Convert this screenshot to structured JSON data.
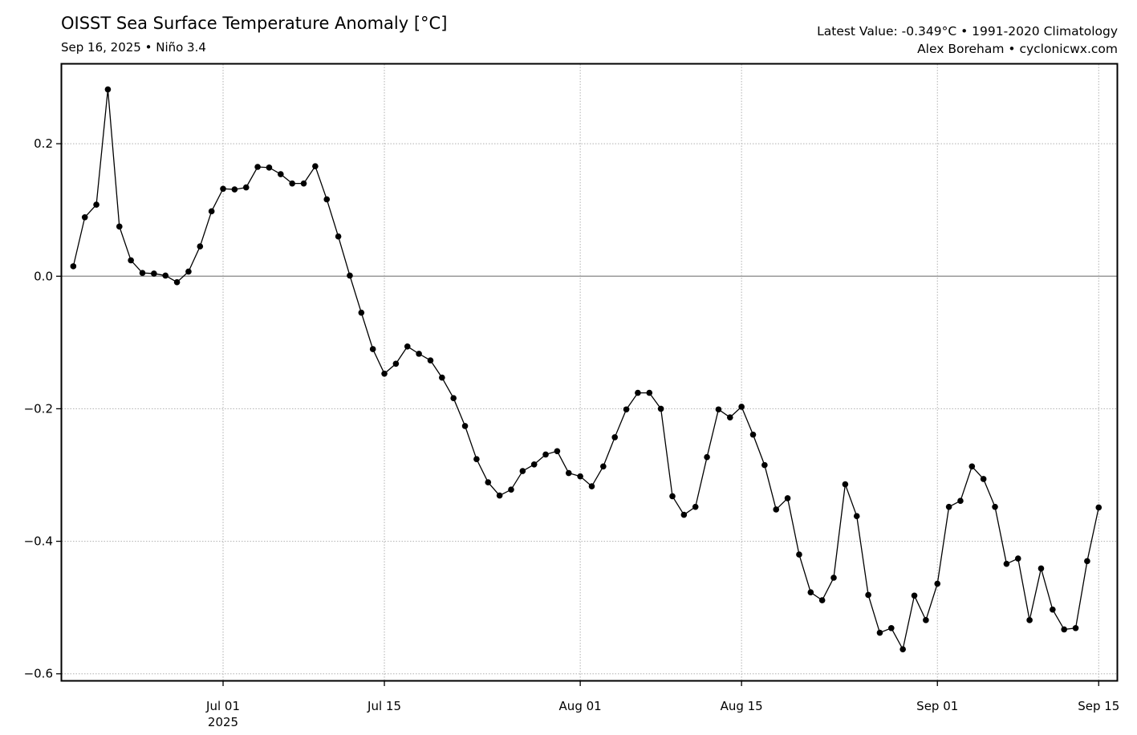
{
  "header": {
    "title": "OISST Sea Surface Temperature Anomaly [°C]",
    "subtitle": "Sep 16, 2025 • Niño 3.4",
    "latest": "Latest Value: -0.349°C • 1991-2020 Climatology",
    "credit": "Alex Boreham • cyclonicwx.com"
  },
  "chart_data": {
    "type": "line",
    "title": "OISST Sea Surface Temperature Anomaly [°C]",
    "subtitle": "Sep 16, 2025 • Niño 3.4",
    "xlabel": "",
    "ylabel": "",
    "ylim": [
      -0.61,
      0.32
    ],
    "xlim": [
      "2025-06-17T00:00",
      "2025-09-16T14:00"
    ],
    "grid": true,
    "zero_line": true,
    "yticks": [
      {
        "value": 0.2,
        "label": "0.2"
      },
      {
        "value": 0.0,
        "label": "0.0"
      },
      {
        "value": -0.2,
        "label": "−0.2"
      },
      {
        "value": -0.4,
        "label": "−0.4"
      },
      {
        "value": -0.6,
        "label": "−0.6"
      }
    ],
    "xticks": [
      {
        "date": "2025-07-01",
        "label": "Jul 01",
        "sublabel": "2025"
      },
      {
        "date": "2025-07-15",
        "label": "Jul 15",
        "sublabel": ""
      },
      {
        "date": "2025-08-01",
        "label": "Aug 01",
        "sublabel": ""
      },
      {
        "date": "2025-08-15",
        "label": "Aug 15",
        "sublabel": ""
      },
      {
        "date": "2025-09-01",
        "label": "Sep 01",
        "sublabel": ""
      },
      {
        "date": "2025-09-15",
        "label": "Sep 15",
        "sublabel": ""
      }
    ],
    "x_start": "2025-06-18",
    "x_step_days": 1,
    "series": [
      {
        "name": "",
        "color": "#000000",
        "values": [
          0.015,
          0.089,
          0.108,
          0.282,
          0.075,
          0.024,
          0.005,
          0.004,
          0.001,
          -0.009,
          0.007,
          0.045,
          0.098,
          0.132,
          0.131,
          0.134,
          0.165,
          0.164,
          0.154,
          0.14,
          0.14,
          0.166,
          0.116,
          0.06,
          0.001,
          -0.055,
          -0.11,
          -0.147,
          -0.132,
          -0.106,
          -0.117,
          -0.127,
          -0.153,
          -0.184,
          -0.226,
          -0.276,
          -0.311,
          -0.331,
          -0.322,
          -0.294,
          -0.284,
          -0.269,
          -0.264,
          -0.297,
          -0.302,
          -0.317,
          -0.287,
          -0.243,
          -0.201,
          -0.176,
          -0.176,
          -0.2,
          -0.332,
          -0.36,
          -0.348,
          -0.273,
          -0.201,
          -0.213,
          -0.197,
          -0.239,
          -0.285,
          -0.352,
          -0.335,
          -0.42,
          -0.477,
          -0.489,
          -0.455,
          -0.314,
          -0.362,
          -0.481,
          -0.538,
          -0.531,
          -0.563,
          -0.482,
          -0.519,
          -0.464,
          -0.348,
          -0.339,
          -0.287,
          -0.306,
          -0.348,
          -0.434,
          -0.426,
          -0.519,
          -0.441,
          -0.503,
          -0.533,
          -0.531,
          -0.43,
          -0.349
        ]
      }
    ]
  }
}
